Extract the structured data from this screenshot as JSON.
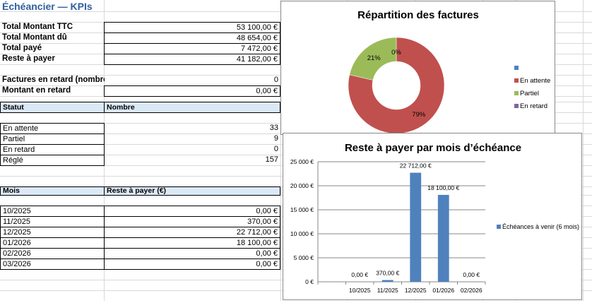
{
  "sheet_title": "Échéancier — KPIs",
  "kpis": [
    {
      "label": "Total Montant TTC",
      "value": "53 100,00 €"
    },
    {
      "label": "Total Montant dû",
      "value": "48 654,00 €"
    },
    {
      "label": "Total payé",
      "value": "7 472,00 €"
    },
    {
      "label": "Reste à payer",
      "value": "41 182,00 €"
    }
  ],
  "late": [
    {
      "label": "Factures en retard (nombre)",
      "value": "0"
    },
    {
      "label": "Montant en retard",
      "value": "0,00 €"
    }
  ],
  "status_table": {
    "headers": [
      "Statut",
      "Nombre"
    ],
    "rows": [
      {
        "label": "En attente",
        "value": "33"
      },
      {
        "label": "Partiel",
        "value": "9"
      },
      {
        "label": "En retard",
        "value": "0"
      },
      {
        "label": "Réglé",
        "value": "157"
      }
    ]
  },
  "month_table": {
    "headers": [
      "Mois",
      "Reste à payer (€)"
    ],
    "rows": [
      {
        "label": "10/2025",
        "value": "0,00 €"
      },
      {
        "label": "11/2025",
        "value": "370,00 €"
      },
      {
        "label": "12/2025",
        "value": "22 712,00 €"
      },
      {
        "label": "01/2026",
        "value": "18 100,00 €"
      },
      {
        "label": "02/2026",
        "value": "0,00 €"
      },
      {
        "label": "03/2026",
        "value": "0,00 €"
      }
    ]
  },
  "chart_data": [
    {
      "type": "pie",
      "title": "Répartition des factures",
      "categories": [
        "",
        "En attente",
        "Partiel",
        "En retard"
      ],
      "values": [
        0,
        33,
        9,
        0
      ],
      "data_labels": [
        "",
        "79%",
        "21%",
        "0%"
      ],
      "colors": [
        "#4f81bd",
        "#c0504d",
        "#9bbb59",
        "#8064a2"
      ],
      "legend": "right"
    },
    {
      "type": "bar",
      "title": "Reste à payer par mois d’échéance",
      "categories": [
        "",
        "10/2025",
        "11/2025",
        "12/2025",
        "01/2026",
        "02/2026"
      ],
      "series": [
        {
          "name": "Échéances à venir (6 mois)",
          "values": [
            null,
            0,
            370,
            22712,
            18100,
            0
          ],
          "data_labels": [
            "",
            "0,00 €",
            "370,00 €",
            "22 712,00 €",
            "18 100,00 €",
            "0,00 €"
          ]
        }
      ],
      "yticks": [
        "0 €",
        "5 000 €",
        "10 000 €",
        "15 000 €",
        "20 000 €",
        "25 000 €"
      ],
      "ylim": [
        0,
        25000
      ],
      "color": "#4f81bd",
      "legend": "right"
    }
  ]
}
